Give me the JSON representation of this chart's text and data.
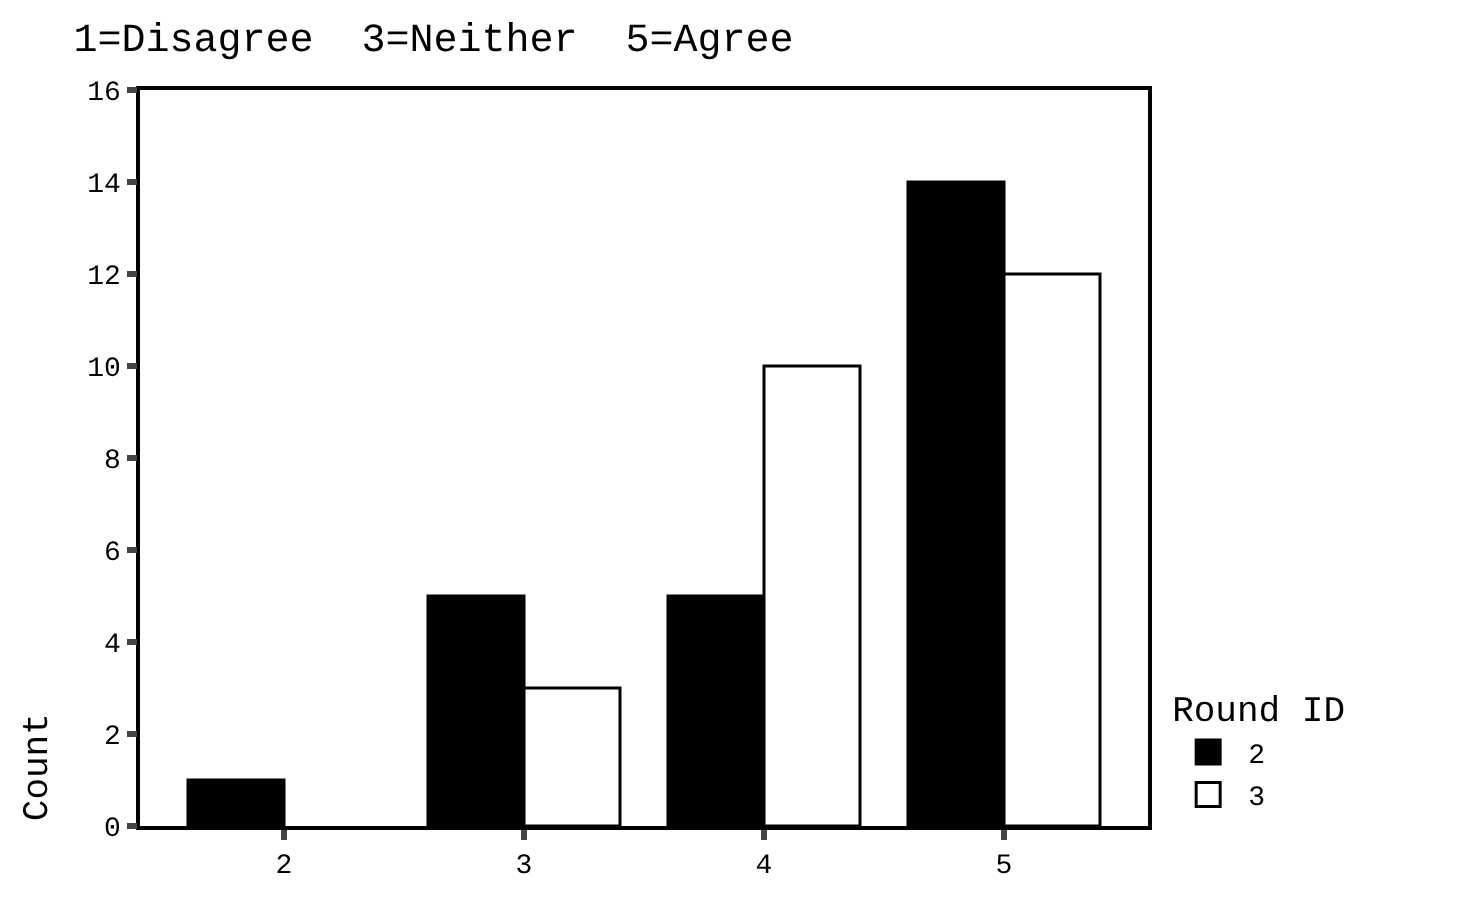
{
  "chart_data": {
    "type": "bar",
    "title": "1=Disagree  3=Neither  5=Agree",
    "ylabel": "Count",
    "legend_title": "Round ID",
    "categories": [
      "2",
      "3",
      "4",
      "5"
    ],
    "series": [
      {
        "name": "2",
        "color": "#000000",
        "values": [
          1,
          5,
          5,
          14
        ]
      },
      {
        "name": "3",
        "color": "#ffffff",
        "values": [
          null,
          3,
          10,
          12
        ]
      }
    ],
    "ylim": [
      0,
      16
    ],
    "yticks": [
      0,
      2,
      4,
      6,
      8,
      10,
      12,
      14,
      16
    ],
    "legend": "bottom right"
  }
}
